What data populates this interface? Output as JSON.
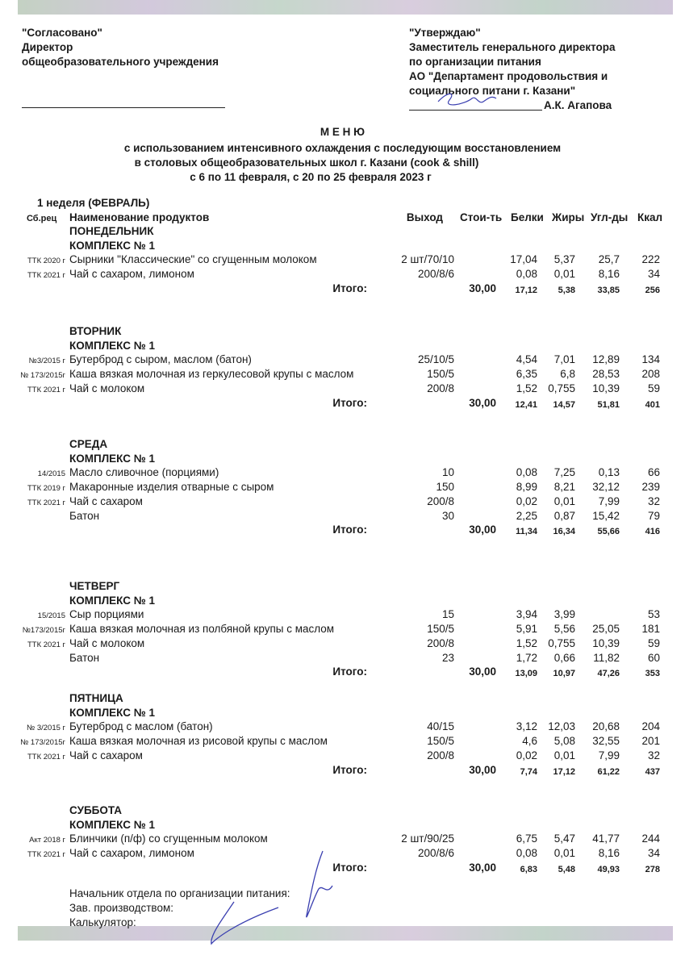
{
  "header_left": {
    "approved": "\"Согласовано\"",
    "position": "Директор",
    "org": "общеобразовательного учреждения"
  },
  "header_right": {
    "approve": "\"Утверждаю\"",
    "line1": "Заместитель генерального директора",
    "line2": "по организации питания",
    "line3": "АО \"Департамент продовольствия и",
    "line4": "социального питани г. Казани\"",
    "signer": "А.К. Агапова"
  },
  "title": {
    "main": "М Е Н Ю",
    "line1": "с использованием интенсивного охлаждения с последующим восстановлением",
    "line2": "в столовых общеобразовательных школ г. Казани (cook & shill)",
    "line3": "с  6  по 11  февраля, с  20  по  25  февраля  2023 г"
  },
  "week": "1 неделя (ФЕВРАЛЬ)",
  "columns": {
    "code": "Сб.рец",
    "name": "Наименование продуктов",
    "yield": "Выход",
    "cost": "Стои-ть",
    "protein": "Белки",
    "fat": "Жиры",
    "carbs": "Угл-ды",
    "kcal": "Ккал"
  },
  "total_label": "Итого:",
  "days": [
    {
      "day": "ПОНЕДЕЛЬНИК",
      "complex": "КОМПЛЕКС № 1",
      "items": [
        {
          "code": "ТТК 2020 г",
          "name": "Сырники \"Классические\" со сгущенным молоком",
          "yield": "2 шт/70/10",
          "protein": "17,04",
          "fat": "5,37",
          "carbs": "25,7",
          "kcal": "222"
        },
        {
          "code": "ТТК 2021 г",
          "name": "Чай с сахаром, лимоном",
          "yield": "200/8/6",
          "protein": "0,08",
          "fat": "0,01",
          "carbs": "8,16",
          "kcal": "34"
        }
      ],
      "total": {
        "cost": "30,00",
        "protein": "17,12",
        "fat": "5,38",
        "carbs": "33,85",
        "kcal": "256"
      }
    },
    {
      "day": "ВТОРНИК",
      "complex": "КОМПЛЕКС № 1",
      "items": [
        {
          "code": "№3/2015 г",
          "name": "Бутерброд с сыром, маслом (батон)",
          "yield": "25/10/5",
          "protein": "4,54",
          "fat": "7,01",
          "carbs": "12,89",
          "kcal": "134"
        },
        {
          "code": "№ 173/2015г",
          "name": "Каша вязкая молочная из геркулесовой крупы с маслом",
          "yield": "150/5",
          "protein": "6,35",
          "fat": "6,8",
          "carbs": "28,53",
          "kcal": "208"
        },
        {
          "code": "ТТК 2021 г",
          "name": "Чай с молоком",
          "yield": "200/8",
          "protein": "1,52",
          "fat": "0,755",
          "carbs": "10,39",
          "kcal": "59"
        }
      ],
      "total": {
        "cost": "30,00",
        "protein": "12,41",
        "fat": "14,57",
        "carbs": "51,81",
        "kcal": "401"
      }
    },
    {
      "day": "СРЕДА",
      "complex": "КОМПЛЕКС № 1",
      "items": [
        {
          "code": "14/2015",
          "name": "Масло сливочное (порциями)",
          "yield": "10",
          "protein": "0,08",
          "fat": "7,25",
          "carbs": "0,13",
          "kcal": "66"
        },
        {
          "code": "ТТК 2019 г",
          "name": "Макаронные изделия отварные с сыром",
          "yield": "150",
          "protein": "8,99",
          "fat": "8,21",
          "carbs": "32,12",
          "kcal": "239"
        },
        {
          "code": "ТТК 2021 г",
          "name": "Чай с сахаром",
          "yield": "200/8",
          "protein": "0,02",
          "fat": "0,01",
          "carbs": "7,99",
          "kcal": "32"
        },
        {
          "code": "",
          "name": "Батон",
          "yield": "30",
          "protein": "2,25",
          "fat": "0,87",
          "carbs": "15,42",
          "kcal": "79"
        }
      ],
      "total": {
        "cost": "30,00",
        "protein": "11,34",
        "fat": "16,34",
        "carbs": "55,66",
        "kcal": "416"
      }
    },
    {
      "day": "ЧЕТВЕРГ",
      "complex": "КОМПЛЕКС № 1",
      "items": [
        {
          "code": "15/2015",
          "name": "Сыр порциями",
          "yield": "15",
          "protein": "3,94",
          "fat": "3,99",
          "carbs": "",
          "kcal": "53"
        },
        {
          "code": "№173/2015г",
          "name": "Каша вязкая молочная из полбяной крупы с маслом",
          "yield": "150/5",
          "protein": "5,91",
          "fat": "5,56",
          "carbs": "25,05",
          "kcal": "181"
        },
        {
          "code": "ТТК 2021 г",
          "name": "Чай с молоком",
          "yield": "200/8",
          "protein": "1,52",
          "fat": "0,755",
          "carbs": "10,39",
          "kcal": "59"
        },
        {
          "code": "",
          "name": "Батон",
          "yield": "23",
          "protein": "1,72",
          "fat": "0,66",
          "carbs": "11,82",
          "kcal": "60"
        }
      ],
      "total": {
        "cost": "30,00",
        "protein": "13,09",
        "fat": "10,97",
        "carbs": "47,26",
        "kcal": "353"
      }
    },
    {
      "day": "ПЯТНИЦА",
      "complex": "КОМПЛЕКС № 1",
      "items": [
        {
          "code": "№ 3/2015 г",
          "name": "Бутерброд с маслом (батон)",
          "yield": "40/15",
          "protein": "3,12",
          "fat": "12,03",
          "carbs": "20,68",
          "kcal": "204"
        },
        {
          "code": "№ 173/2015г",
          "name": "Каша вязкая молочная из рисовой крупы с маслом",
          "yield": "150/5",
          "protein": "4,6",
          "fat": "5,08",
          "carbs": "32,55",
          "kcal": "201"
        },
        {
          "code": "ТТК 2021 г",
          "name": "Чай с сахаром",
          "yield": "200/8",
          "protein": "0,02",
          "fat": "0,01",
          "carbs": "7,99",
          "kcal": "32"
        }
      ],
      "total": {
        "cost": "30,00",
        "protein": "7,74",
        "fat": "17,12",
        "carbs": "61,22",
        "kcal": "437"
      }
    },
    {
      "day": "СУББОТА",
      "complex": "КОМПЛЕКС № 1",
      "items": [
        {
          "code": "Акт 2018 г",
          "name": "Блинчики (п/ф) со сгущенным молоком",
          "yield": "2 шт/90/25",
          "protein": "6,75",
          "fat": "5,47",
          "carbs": "41,77",
          "kcal": "244"
        },
        {
          "code": "ТТК 2021 г",
          "name": "Чай с сахаром, лимоном",
          "yield": "200/8/6",
          "protein": "0,08",
          "fat": "0,01",
          "carbs": "8,16",
          "kcal": "34"
        }
      ],
      "total": {
        "cost": "30,00",
        "protein": "6,83",
        "fat": "5,48",
        "carbs": "49,93",
        "kcal": "278"
      }
    }
  ],
  "footer": {
    "line1": "Начальник отдела по организации питания:",
    "line2": "Зав. производством:",
    "line3": "Калькулятор:"
  },
  "colors": {
    "ink": "#1a1a1a",
    "signature": "#3a3fb0"
  }
}
